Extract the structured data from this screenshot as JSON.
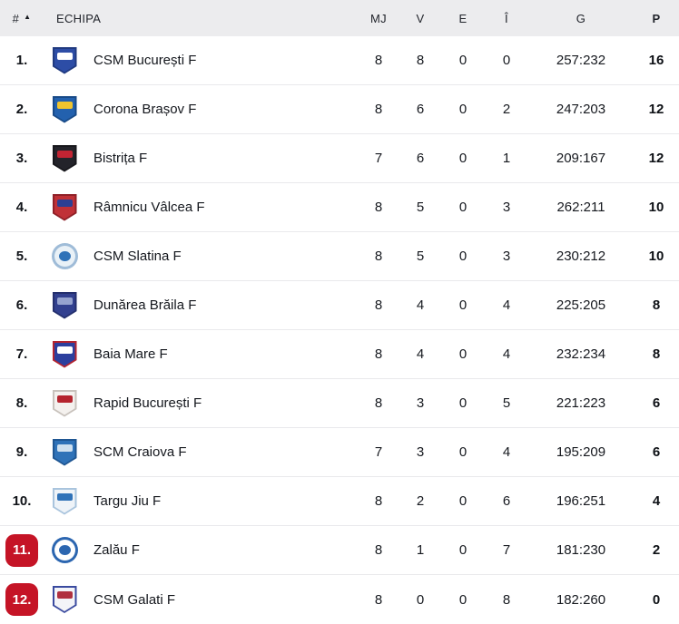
{
  "colors": {
    "header_bg": "#ececee",
    "row_bg": "#ffffff",
    "separator": "#e9e9ec",
    "text_primary": "#15181e",
    "header_text": "#21242b",
    "relegation_badge": "#c51426",
    "badge_text": "#ffffff"
  },
  "table": {
    "sort_icon": "▲",
    "columns": {
      "rank": "#",
      "team": "ECHIPA",
      "mj": "MJ",
      "v": "V",
      "e": "E",
      "i": "Î",
      "g": "G",
      "p": "P"
    },
    "rows": [
      {
        "rank": "1.",
        "team": "CSM București F",
        "mj": "8",
        "v": "8",
        "e": "0",
        "i": "0",
        "g": "257:232",
        "p": "16",
        "relegation": false,
        "logo": {
          "shape": "shield",
          "colors": [
            "#2d4da6",
            "#ffffff",
            "#203a80"
          ]
        }
      },
      {
        "rank": "2.",
        "team": "Corona Brașov F",
        "mj": "8",
        "v": "6",
        "e": "0",
        "i": "2",
        "g": "247:203",
        "p": "12",
        "relegation": false,
        "logo": {
          "shape": "shield",
          "colors": [
            "#2361ae",
            "#f0c42e",
            "#184a88"
          ]
        }
      },
      {
        "rank": "3.",
        "team": "Bistrița F",
        "mj": "7",
        "v": "6",
        "e": "0",
        "i": "1",
        "g": "209:167",
        "p": "12",
        "relegation": false,
        "logo": {
          "shape": "shield",
          "colors": [
            "#23232a",
            "#c22433",
            "#17171c"
          ]
        }
      },
      {
        "rank": "4.",
        "team": "Râmnicu Vâlcea F",
        "mj": "8",
        "v": "5",
        "e": "0",
        "i": "3",
        "g": "262:211",
        "p": "10",
        "relegation": false,
        "logo": {
          "shape": "shield",
          "colors": [
            "#c03137",
            "#2d3f93",
            "#8f2027"
          ]
        }
      },
      {
        "rank": "5.",
        "team": "CSM Slatina F",
        "mj": "8",
        "v": "5",
        "e": "0",
        "i": "3",
        "g": "230:212",
        "p": "10",
        "relegation": false,
        "logo": {
          "shape": "circle",
          "colors": [
            "#e9f1f7",
            "#2f72b8",
            "#9fbcd8"
          ]
        }
      },
      {
        "rank": "6.",
        "team": "Dunărea Brăila F",
        "mj": "8",
        "v": "4",
        "e": "0",
        "i": "4",
        "g": "225:205",
        "p": "8",
        "relegation": false,
        "logo": {
          "shape": "shield",
          "colors": [
            "#32408f",
            "#96a3cf",
            "#242f6d"
          ]
        }
      },
      {
        "rank": "7.",
        "team": "Baia Mare F",
        "mj": "8",
        "v": "4",
        "e": "0",
        "i": "4",
        "g": "232:234",
        "p": "8",
        "relegation": false,
        "logo": {
          "shape": "shield",
          "colors": [
            "#2c3f9e",
            "#ffffff",
            "#b32430"
          ]
        }
      },
      {
        "rank": "8.",
        "team": "Rapid București F",
        "mj": "8",
        "v": "3",
        "e": "0",
        "i": "5",
        "g": "221:223",
        "p": "6",
        "relegation": false,
        "logo": {
          "shape": "shield",
          "colors": [
            "#f4f1ee",
            "#b5242e",
            "#c8c2bc"
          ]
        }
      },
      {
        "rank": "9.",
        "team": "SCM Craiova F",
        "mj": "7",
        "v": "3",
        "e": "0",
        "i": "4",
        "g": "195:209",
        "p": "6",
        "relegation": false,
        "logo": {
          "shape": "shield",
          "colors": [
            "#2f72b8",
            "#cfe0ef",
            "#1f5692"
          ]
        }
      },
      {
        "rank": "10.",
        "team": "Targu Jiu F",
        "mj": "8",
        "v": "2",
        "e": "0",
        "i": "6",
        "g": "196:251",
        "p": "4",
        "relegation": false,
        "logo": {
          "shape": "shield",
          "colors": [
            "#eef3f8",
            "#2f72b8",
            "#a9c4dd"
          ]
        }
      },
      {
        "rank": "11.",
        "team": "Zalău F",
        "mj": "8",
        "v": "1",
        "e": "0",
        "i": "7",
        "g": "181:230",
        "p": "2",
        "relegation": true,
        "logo": {
          "shape": "circle",
          "colors": [
            "#ffffff",
            "#2c66b0",
            "#2c66b0"
          ]
        }
      },
      {
        "rank": "12.",
        "team": "CSM Galati F",
        "mj": "8",
        "v": "0",
        "e": "0",
        "i": "8",
        "g": "182:260",
        "p": "0",
        "relegation": true,
        "logo": {
          "shape": "shield",
          "colors": [
            "#f3f4f8",
            "#b03040",
            "#3a4a9f"
          ]
        }
      }
    ]
  }
}
